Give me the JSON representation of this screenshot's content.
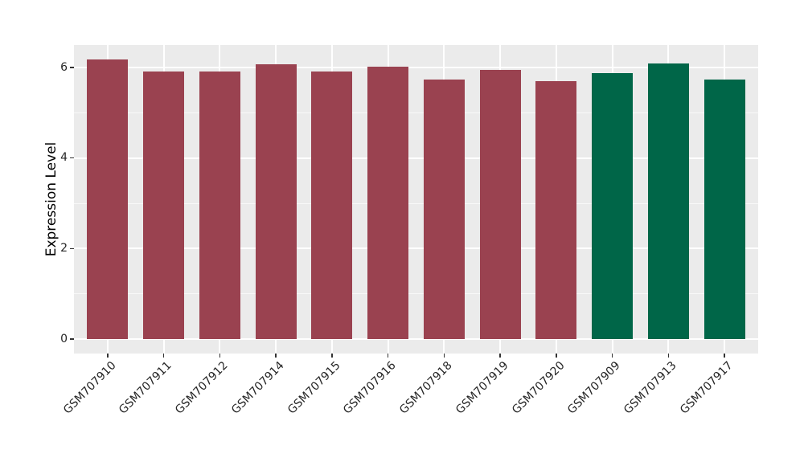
{
  "chart_data": {
    "type": "bar",
    "title": "",
    "xlabel": "",
    "ylabel": "Expression Level",
    "categories": [
      "GSM707910",
      "GSM707911",
      "GSM707912",
      "GSM707914",
      "GSM707915",
      "GSM707916",
      "GSM707918",
      "GSM707919",
      "GSM707920",
      "GSM707909",
      "GSM707913",
      "GSM707917"
    ],
    "values": [
      6.18,
      5.92,
      5.92,
      6.08,
      5.92,
      6.02,
      5.73,
      5.94,
      5.69,
      5.88,
      6.09,
      5.73
    ],
    "colors": [
      "#9A4250",
      "#9A4250",
      "#9A4250",
      "#9A4250",
      "#9A4250",
      "#9A4250",
      "#9A4250",
      "#9A4250",
      "#9A4250",
      "#006648",
      "#006648",
      "#006648"
    ],
    "group_colors": {
      "maroon": "#9A4250",
      "green": "#006648"
    },
    "ylim": [
      0,
      6.49
    ],
    "yticks": [
      0,
      2,
      4,
      6
    ],
    "minor_yticks": [
      1,
      3,
      5
    ],
    "grid": "on",
    "legend": "none",
    "panel_bg": "#EBEBEB",
    "grid_color": "#FFFFFF",
    "tick_color": "#333333",
    "text_color": "#262626"
  }
}
